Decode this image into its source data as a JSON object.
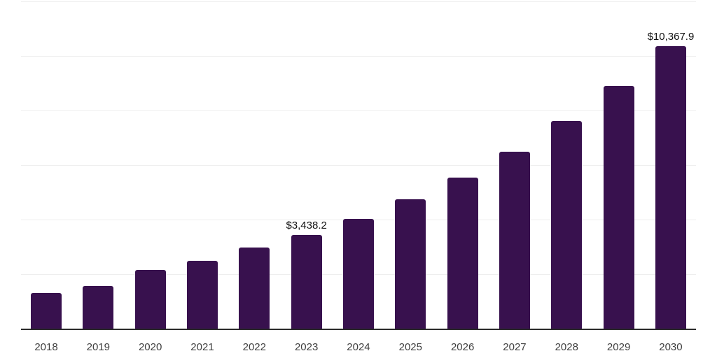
{
  "chart_data": {
    "type": "bar",
    "title": "",
    "xlabel": "",
    "ylabel": "",
    "categories": [
      "2018",
      "2019",
      "2020",
      "2021",
      "2022",
      "2023",
      "2024",
      "2025",
      "2026",
      "2027",
      "2028",
      "2029",
      "2030"
    ],
    "values": [
      1300,
      1570,
      2150,
      2490,
      2970,
      3438.2,
      4020,
      4740,
      5540,
      6480,
      7620,
      8890,
      10367.9
    ],
    "data_labels": {
      "2023": "$3,438.2",
      "2030": "$10,367.9"
    },
    "ylim": [
      0,
      12000
    ],
    "gridline_step": 2000,
    "grid": "horizontal-only",
    "legend": "none",
    "y_axis_labels_visible": false,
    "colors": {
      "bar": "#38114E",
      "gridline": "#eeeeee",
      "axis_line": "#2b2b2b",
      "tick_label": "#3f3f3f",
      "value_label": "#111111",
      "background": "#ffffff"
    }
  }
}
